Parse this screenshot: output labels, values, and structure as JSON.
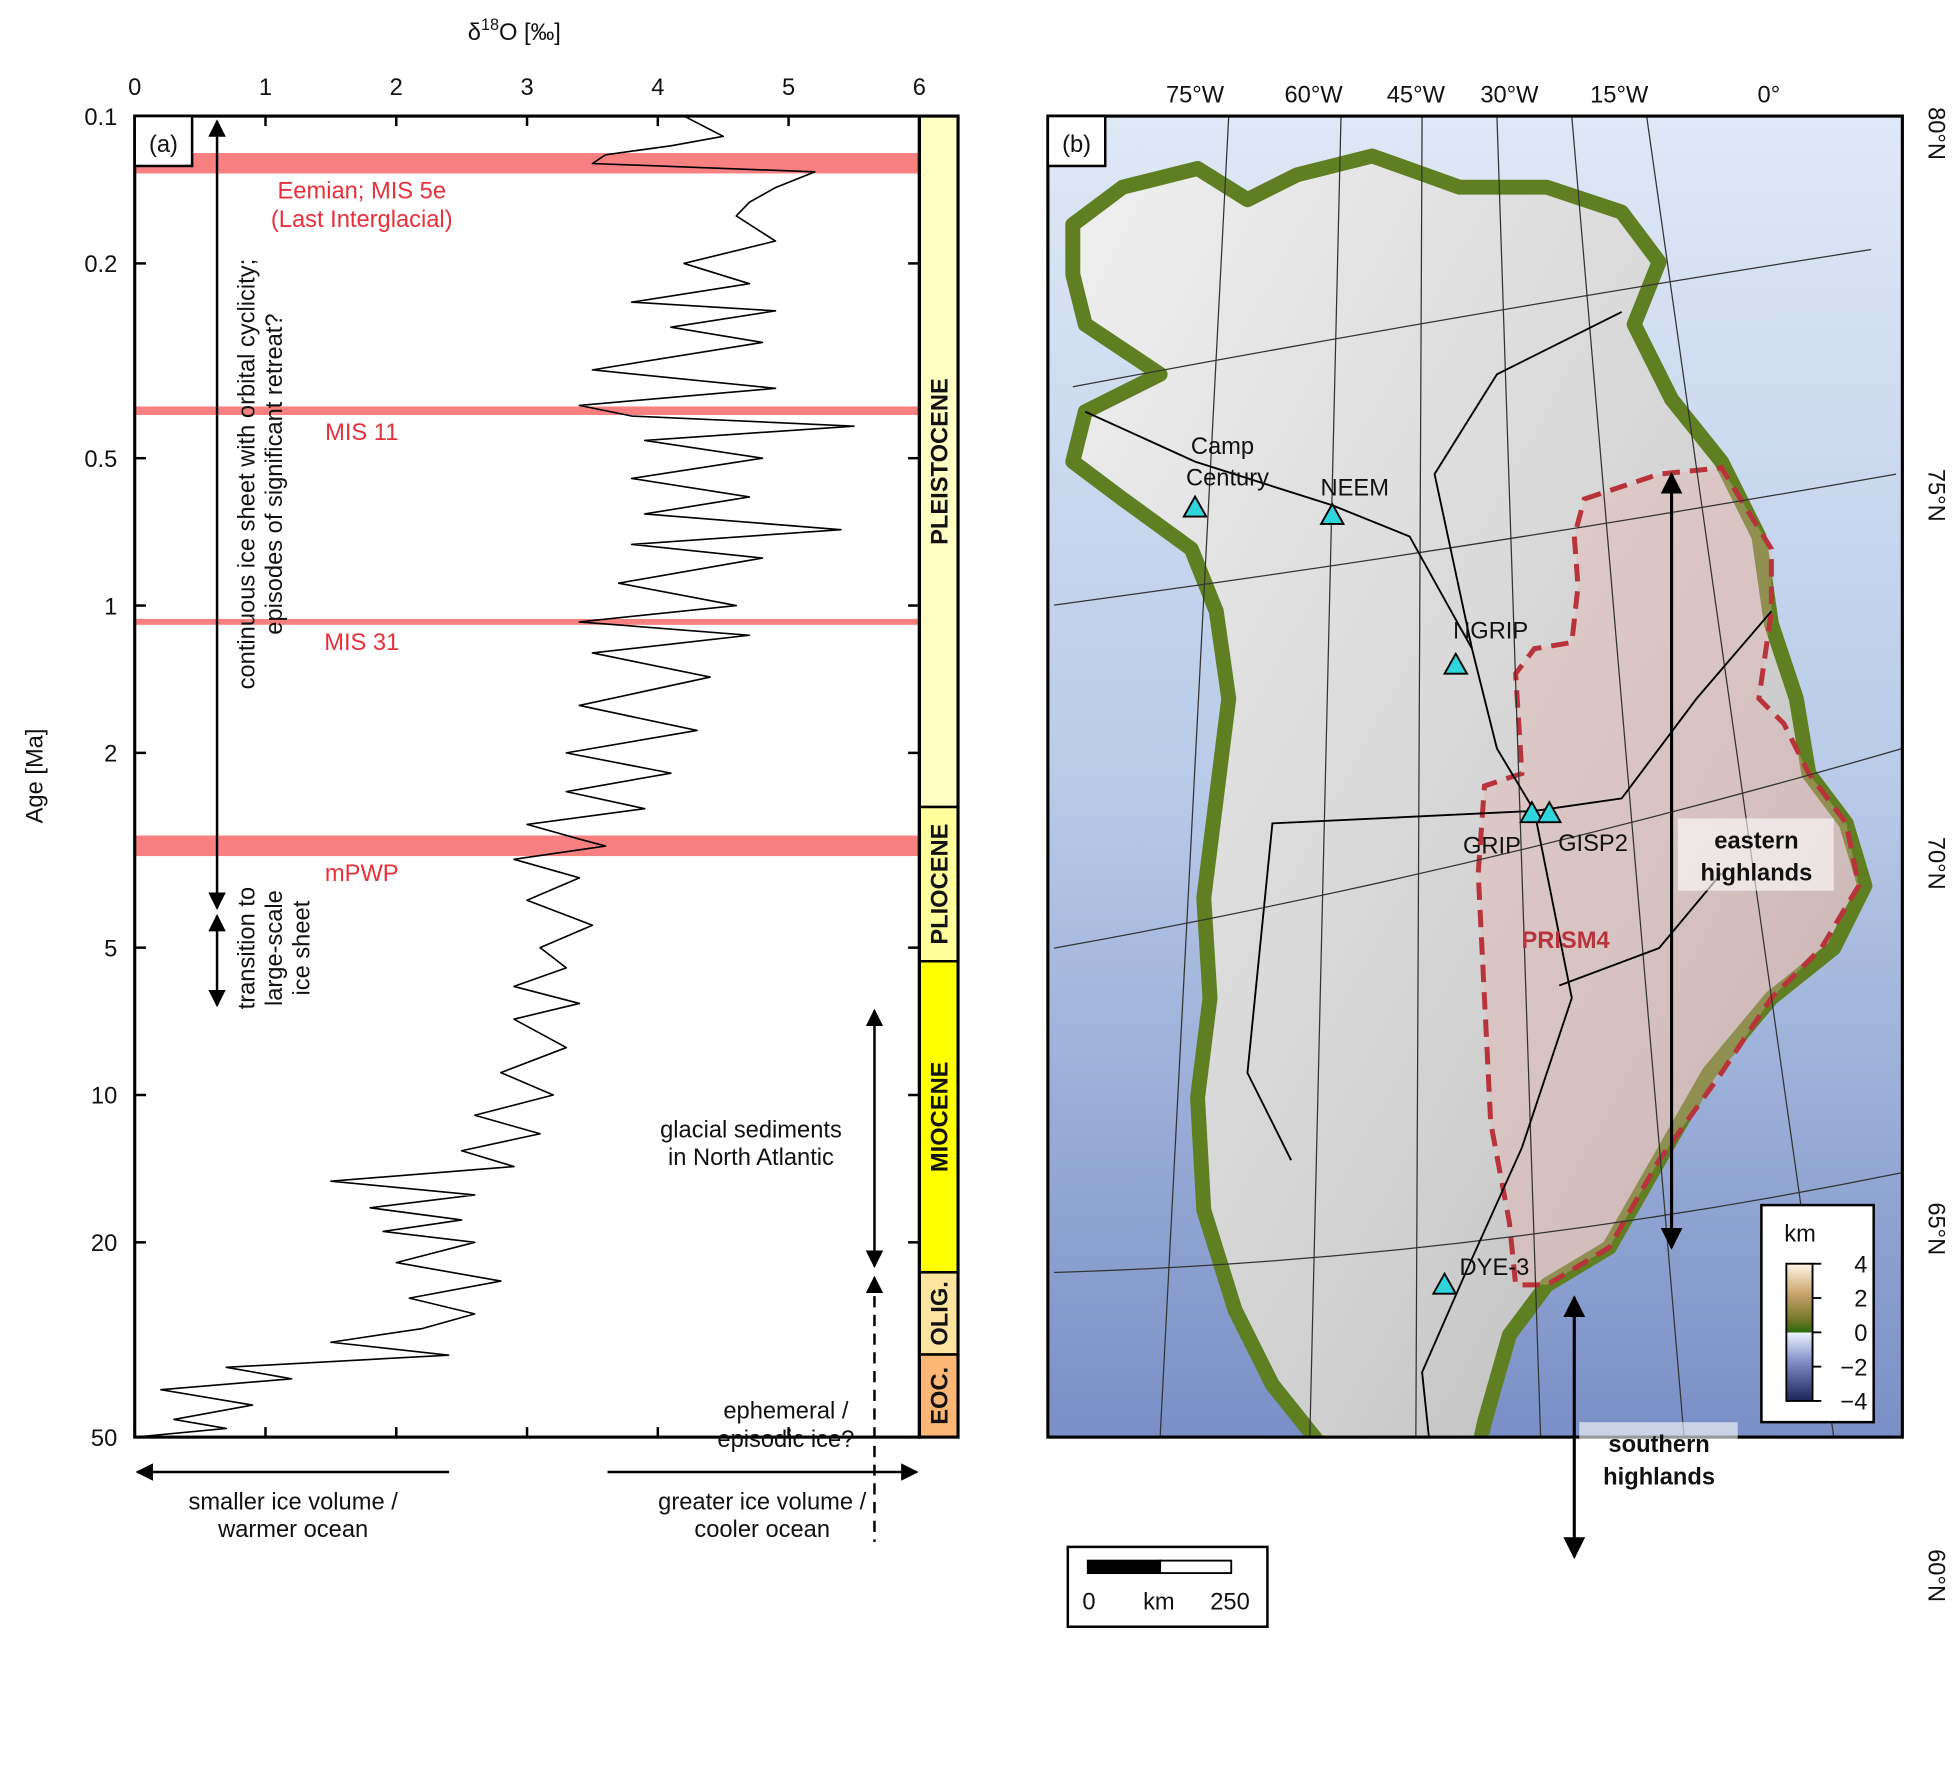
{
  "chart_data": {
    "type": "line",
    "panel_label": "(a)",
    "xlabel": {
      "symbol": "δ",
      "sup": "18",
      "rest": "O [‰]"
    },
    "ylabel": "Age [Ma]",
    "xlim": [
      0,
      6
    ],
    "xticks": [
      0,
      1,
      2,
      3,
      4,
      5,
      6
    ],
    "ylim": [
      0.1,
      50
    ],
    "yticks": [
      0.1,
      0.2,
      0.5,
      1,
      2,
      5,
      10,
      20,
      50
    ],
    "yscale": "log",
    "color": "#000000",
    "ages": [
      0.1,
      0.11,
      0.115,
      0.12,
      0.125,
      0.13,
      0.14,
      0.15,
      0.16,
      0.18,
      0.2,
      0.22,
      0.24,
      0.25,
      0.27,
      0.29,
      0.33,
      0.36,
      0.39,
      0.41,
      0.43,
      0.46,
      0.5,
      0.55,
      0.6,
      0.65,
      0.7,
      0.75,
      0.8,
      0.9,
      1.0,
      1.08,
      1.15,
      1.25,
      1.4,
      1.6,
      1.8,
      2.0,
      2.2,
      2.4,
      2.6,
      2.8,
      3.0,
      3.1,
      3.3,
      3.6,
      4.0,
      4.5,
      5.0,
      5.5,
      6.0,
      6.5,
      7.0,
      8.0,
      9.0,
      10,
      11,
      12,
      13,
      14,
      15,
      16,
      17,
      18,
      19,
      20,
      22,
      24,
      26,
      28,
      30,
      32,
      34,
      36,
      38,
      40,
      43,
      46,
      48,
      50
    ],
    "values": [
      4.2,
      4.5,
      4.1,
      3.6,
      3.5,
      5.2,
      4.9,
      4.7,
      4.6,
      4.9,
      4.2,
      4.7,
      3.8,
      4.9,
      4.1,
      4.8,
      3.5,
      4.9,
      3.4,
      3.8,
      5.5,
      3.9,
      4.8,
      3.8,
      4.7,
      3.9,
      5.4,
      3.8,
      4.8,
      3.7,
      4.6,
      3.4,
      4.7,
      3.5,
      4.4,
      3.4,
      4.3,
      3.3,
      4.1,
      3.3,
      3.9,
      3.0,
      3.4,
      3.6,
      2.9,
      3.4,
      3.0,
      3.5,
      3.1,
      3.3,
      2.9,
      3.4,
      2.9,
      3.3,
      2.8,
      3.2,
      2.6,
      3.1,
      2.5,
      2.9,
      1.5,
      2.6,
      1.8,
      2.5,
      1.9,
      2.6,
      2.0,
      2.8,
      2.1,
      2.6,
      2.2,
      1.5,
      2.4,
      0.7,
      1.2,
      0.2,
      0.9,
      0.3,
      0.7,
      0.0
    ],
    "band_color": "#f88080",
    "bands": [
      {
        "range": [
          0.119,
          0.131
        ],
        "label": [
          "Eemian; MIS 5e",
          "(Last Interglacial)"
        ]
      },
      {
        "range": [
          0.392,
          0.408
        ],
        "label": [
          "MIS 11"
        ]
      },
      {
        "range": [
          1.065,
          1.095
        ],
        "label": [
          "MIS 31"
        ]
      },
      {
        "range": [
          2.95,
          3.25
        ],
        "label": [
          "mPWP"
        ]
      }
    ],
    "epochs": [
      {
        "range": [
          0.1,
          2.58
        ],
        "label": "PLEISTOCENE",
        "color": "#ffffc4"
      },
      {
        "range": [
          2.58,
          5.33
        ],
        "label": "PLIOCENE",
        "color": "#ffff9c"
      },
      {
        "range": [
          5.33,
          23.03
        ],
        "label": "MIOCENE",
        "color": "#ffff00"
      },
      {
        "range": [
          23.03,
          33.9
        ],
        "label": "OLIG.",
        "color": "#fde5a0"
      },
      {
        "range": [
          33.9,
          50
        ],
        "label": "EOC.",
        "color": "#fdb673"
      }
    ],
    "annotations": {
      "continuous": [
        "continuous ice sheet with orbital cyclicity;",
        "episodes of significant retreat?"
      ],
      "transition": [
        "transition to",
        "large-scale",
        "ice sheet"
      ],
      "glacial": [
        "glacial sediments",
        "in North Atlantic"
      ],
      "ephemeral": [
        "ephemeral /",
        "episodic ice?"
      ]
    },
    "direction_labels": {
      "left": [
        "smaller ice volume /",
        "warmer ocean"
      ],
      "right": [
        "greater ice volume /",
        "cooler ocean"
      ]
    }
  },
  "map": {
    "panel_label": "(b)",
    "longitudes": [
      "75°W",
      "60°W",
      "45°W",
      "30°W",
      "15°W",
      "0°"
    ],
    "latitudes": [
      "80°N",
      "75°N",
      "70°N",
      "65°N",
      "60°N"
    ],
    "sites": {
      "camp_century": [
        "Camp",
        "Century"
      ],
      "neem": "NEEM",
      "ngrip": "NGRIP",
      "grip": "GRIP",
      "gisp2": "GISP2",
      "dye3": "DYE-3"
    },
    "regions": {
      "eastern": [
        "eastern",
        "highlands"
      ],
      "southern": [
        "southern",
        "highlands"
      ],
      "prism": "PRISM4"
    },
    "colorbar": {
      "title": "km",
      "lim": [
        -4,
        4
      ],
      "ticks": [
        4,
        2,
        0,
        {
          "value": -2,
          "label": "−2"
        },
        {
          "value": -4,
          "label": "−4"
        }
      ]
    },
    "scale_bar": {
      "start": "0",
      "unit": "km",
      "end": "250"
    }
  }
}
